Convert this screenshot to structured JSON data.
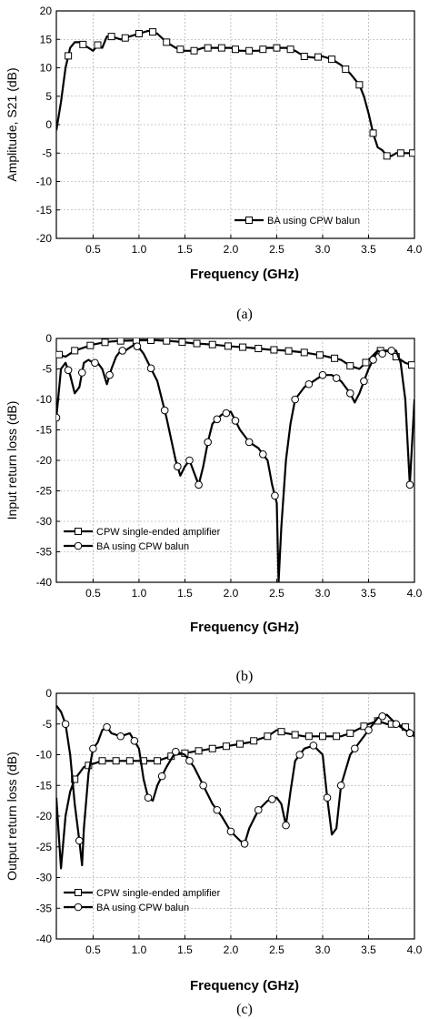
{
  "chart_data": [
    {
      "type": "line",
      "panel": "a",
      "caption": "(a)",
      "xlabel": "Frequency (GHz)",
      "ylabel": "Amplitude, S21 (dB)",
      "xlim": [
        0.1,
        4.0
      ],
      "ylim": [
        -20,
        20
      ],
      "xticks": [
        0.5,
        1.0,
        1.5,
        2.0,
        2.5,
        3.0,
        3.5,
        4.0
      ],
      "xtick_labels": [
        "0.5",
        "1.0",
        "1.5",
        "2.0",
        "2.5",
        "3.0",
        "3.5",
        "4.0"
      ],
      "yticks": [
        -20,
        -15,
        -10,
        -5,
        0,
        5,
        10,
        15,
        20
      ],
      "ytick_labels": [
        "-20",
        "-15",
        "-10",
        "-5",
        "0",
        "5",
        "10",
        "15",
        "20"
      ],
      "grid": true,
      "legend_position": "bottom-right",
      "series": [
        {
          "name": "BA using CPW balun",
          "marker": "square",
          "x": [
            0.1,
            0.15,
            0.2,
            0.25,
            0.3,
            0.35,
            0.4,
            0.45,
            0.5,
            0.55,
            0.6,
            0.65,
            0.7,
            0.8,
            0.9,
            1.0,
            1.1,
            1.15,
            1.2,
            1.3,
            1.4,
            1.5,
            1.6,
            1.7,
            1.8,
            1.9,
            2.0,
            2.1,
            2.2,
            2.3,
            2.4,
            2.5,
            2.6,
            2.7,
            2.8,
            2.9,
            3.0,
            3.1,
            3.2,
            3.3,
            3.4,
            3.45,
            3.5,
            3.55,
            3.6,
            3.65,
            3.7,
            3.75,
            3.8,
            3.9,
            4.0
          ],
          "y": [
            -1,
            4,
            10,
            13.5,
            14.5,
            14.5,
            14,
            13.5,
            13,
            14,
            13.5,
            15.5,
            15.5,
            15,
            15.5,
            16,
            16.5,
            16.3,
            16,
            14.5,
            13.5,
            13,
            13,
            13.5,
            13.5,
            13.5,
            13.5,
            13,
            13,
            13,
            13.5,
            13.5,
            13.5,
            13,
            12,
            11.8,
            12,
            11.5,
            10.5,
            9,
            7,
            5,
            2,
            -1.5,
            -4,
            -4.5,
            -5.5,
            -5.5,
            -5,
            -5,
            -5
          ],
          "marker_x": [
            0.23,
            0.39,
            0.55,
            0.7,
            0.85,
            1.0,
            1.15,
            1.3,
            1.45,
            1.6,
            1.75,
            1.9,
            2.05,
            2.2,
            2.35,
            2.5,
            2.65,
            2.8,
            2.95,
            3.1,
            3.25,
            3.4,
            3.55,
            3.7,
            3.85,
            3.98
          ]
        }
      ]
    },
    {
      "type": "line",
      "panel": "b",
      "caption": "(b)",
      "xlabel": "Frequency (GHz)",
      "ylabel": "Input return loss (dB)",
      "xlim": [
        0.1,
        4.0
      ],
      "ylim": [
        -40,
        0
      ],
      "xticks": [
        0.5,
        1.0,
        1.5,
        2.0,
        2.5,
        3.0,
        3.5,
        4.0
      ],
      "xtick_labels": [
        "0.5",
        "1.0",
        "1.5",
        "2.0",
        "2.5",
        "3.0",
        "3.5",
        "4.0"
      ],
      "yticks": [
        -40,
        -35,
        -30,
        -25,
        -20,
        -15,
        -10,
        -5,
        0
      ],
      "ytick_labels": [
        "-40",
        "-35",
        "-30",
        "-25",
        "-20",
        "-15",
        "-10",
        "-5",
        "0"
      ],
      "grid": true,
      "legend_position": "bottom-left",
      "series": [
        {
          "name": "CPW single-ended amplifier",
          "marker": "square",
          "x": [
            0.1,
            0.2,
            0.3,
            0.4,
            0.5,
            0.6,
            0.7,
            0.8,
            1.0,
            1.2,
            1.4,
            1.6,
            1.8,
            2.0,
            2.2,
            2.4,
            2.6,
            2.8,
            3.0,
            3.2,
            3.3,
            3.4,
            3.5,
            3.6,
            3.7,
            3.8,
            3.9,
            4.0
          ],
          "y": [
            -2.5,
            -3,
            -2,
            -1.5,
            -1,
            -0.7,
            -0.5,
            -0.4,
            -0.3,
            -0.3,
            -0.5,
            -0.8,
            -1,
            -1.3,
            -1.5,
            -1.8,
            -2,
            -2.3,
            -2.8,
            -3.5,
            -4.5,
            -5,
            -3.5,
            -2,
            -2,
            -3,
            -4,
            -4.5
          ],
          "marker_x": [
            0.13,
            0.3,
            0.47,
            0.63,
            0.8,
            0.97,
            1.13,
            1.3,
            1.47,
            1.63,
            1.8,
            1.97,
            2.13,
            2.3,
            2.47,
            2.63,
            2.8,
            2.97,
            3.13,
            3.3,
            3.47,
            3.63,
            3.8,
            3.97
          ]
        },
        {
          "name": "BA using CPW balun",
          "marker": "circle",
          "x": [
            0.1,
            0.15,
            0.2,
            0.25,
            0.3,
            0.35,
            0.4,
            0.45,
            0.5,
            0.55,
            0.6,
            0.65,
            0.7,
            0.75,
            0.8,
            0.85,
            0.9,
            0.95,
            1.0,
            1.05,
            1.1,
            1.2,
            1.3,
            1.4,
            1.45,
            1.5,
            1.55,
            1.6,
            1.65,
            1.7,
            1.75,
            1.8,
            1.9,
            2.0,
            2.05,
            2.1,
            2.2,
            2.3,
            2.4,
            2.45,
            2.5,
            2.52,
            2.55,
            2.6,
            2.65,
            2.7,
            2.8,
            2.9,
            3.0,
            3.1,
            3.2,
            3.3,
            3.35,
            3.4,
            3.5,
            3.6,
            3.65,
            3.7,
            3.8,
            3.85,
            3.9,
            3.95,
            4.0
          ],
          "y": [
            -13,
            -5,
            -4,
            -6,
            -9,
            -8,
            -4,
            -3.5,
            -4,
            -4,
            -5,
            -7.5,
            -5,
            -3,
            -2,
            -2,
            -1.5,
            -1,
            -1.5,
            -2.5,
            -4,
            -7,
            -13,
            -20,
            -22.5,
            -21,
            -20,
            -22,
            -24,
            -21,
            -17,
            -14,
            -12.5,
            -12,
            -13.5,
            -15,
            -17,
            -18,
            -20,
            -24,
            -27,
            -40,
            -31,
            -20,
            -14,
            -10,
            -8,
            -7,
            -6,
            -6,
            -7,
            -9,
            -10.5,
            -9,
            -5,
            -2,
            -2.5,
            -2,
            -2,
            -4,
            -10,
            -24,
            -10
          ],
          "marker_x": [
            0.1,
            0.23,
            0.38,
            0.52,
            0.68,
            0.82,
            0.98,
            1.13,
            1.28,
            1.42,
            1.55,
            1.65,
            1.75,
            1.85,
            1.95,
            2.05,
            2.2,
            2.35,
            2.48,
            2.7,
            2.85,
            3.0,
            3.15,
            3.3,
            3.45,
            3.55,
            3.65,
            3.75,
            3.95
          ]
        }
      ]
    },
    {
      "type": "line",
      "panel": "c",
      "caption": "(c)",
      "xlabel": "Frequency (GHz)",
      "ylabel": "Output return loss (dB)",
      "xlim": [
        0.1,
        4.0
      ],
      "ylim": [
        -40,
        0
      ],
      "xticks": [
        0.5,
        1.0,
        1.5,
        2.0,
        2.5,
        3.0,
        3.5,
        4.0
      ],
      "xtick_labels": [
        "0.5",
        "1.0",
        "1.5",
        "2.0",
        "2.5",
        "3.0",
        "3.5",
        "4.0"
      ],
      "yticks": [
        -40,
        -35,
        -30,
        -25,
        -20,
        -15,
        -10,
        -5,
        0
      ],
      "ytick_labels": [
        "-40",
        "-35",
        "-30",
        "-25",
        "-20",
        "-15",
        "-10",
        "-5",
        "0"
      ],
      "grid": true,
      "legend_position": "bottom-left",
      "series": [
        {
          "name": "CPW single-ended amplifier",
          "marker": "square",
          "x": [
            0.1,
            0.15,
            0.2,
            0.25,
            0.3,
            0.35,
            0.4,
            0.5,
            0.6,
            0.8,
            1.0,
            1.2,
            1.4,
            1.6,
            1.8,
            2.0,
            2.2,
            2.4,
            2.5,
            2.6,
            2.8,
            3.0,
            3.2,
            3.3,
            3.5,
            3.6,
            3.7,
            3.8,
            3.9,
            4.0
          ],
          "y": [
            -17,
            -28.5,
            -20,
            -16,
            -14,
            -13,
            -12,
            -11.5,
            -11,
            -11,
            -11,
            -11,
            -10,
            -9.5,
            -9,
            -8.5,
            -8,
            -7,
            -6,
            -6.5,
            -7,
            -7,
            -7,
            -6.5,
            -5,
            -4.5,
            -5,
            -5,
            -5.5,
            -6.5
          ],
          "marker_x": [
            0.3,
            0.45,
            0.6,
            0.75,
            0.9,
            1.05,
            1.2,
            1.35,
            1.5,
            1.65,
            1.8,
            1.95,
            2.1,
            2.25,
            2.4,
            2.55,
            2.7,
            2.85,
            3.0,
            3.15,
            3.3,
            3.45,
            3.6,
            3.75,
            3.9
          ]
        },
        {
          "name": "BA using CPW balun",
          "marker": "circle",
          "x": [
            0.1,
            0.15,
            0.2,
            0.25,
            0.3,
            0.35,
            0.38,
            0.4,
            0.45,
            0.5,
            0.55,
            0.6,
            0.65,
            0.7,
            0.8,
            0.9,
            1.0,
            1.05,
            1.1,
            1.15,
            1.2,
            1.3,
            1.4,
            1.5,
            1.6,
            1.7,
            1.8,
            1.9,
            2.0,
            2.1,
            2.15,
            2.2,
            2.3,
            2.4,
            2.5,
            2.55,
            2.6,
            2.65,
            2.7,
            2.8,
            2.9,
            3.0,
            3.05,
            3.1,
            3.15,
            3.2,
            3.3,
            3.4,
            3.5,
            3.6,
            3.7,
            3.8,
            3.9,
            4.0
          ],
          "y": [
            -2,
            -3,
            -5,
            -10,
            -18,
            -24,
            -28,
            -22,
            -13,
            -9,
            -8,
            -6,
            -5.5,
            -6.5,
            -7,
            -6.5,
            -9,
            -14,
            -17,
            -17.5,
            -15,
            -12,
            -9.5,
            -10,
            -12,
            -15,
            -18,
            -20,
            -22.5,
            -24,
            -24.5,
            -22,
            -19,
            -17.5,
            -17,
            -18,
            -21.5,
            -16,
            -11,
            -9,
            -8.5,
            -10,
            -17,
            -23,
            -22,
            -15,
            -10,
            -8,
            -6,
            -4,
            -3.5,
            -5,
            -6,
            -7
          ],
          "marker_x": [
            0.2,
            0.35,
            0.5,
            0.65,
            0.8,
            0.95,
            1.1,
            1.25,
            1.4,
            1.55,
            1.7,
            1.85,
            2.0,
            2.15,
            2.3,
            2.45,
            2.6,
            2.75,
            2.9,
            3.05,
            3.2,
            3.35,
            3.5,
            3.65,
            3.8,
            3.95
          ]
        }
      ]
    }
  ]
}
